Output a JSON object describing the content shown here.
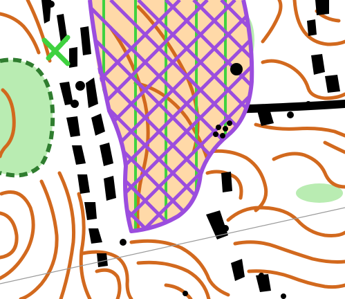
{
  "map": {
    "type": "orienteering-map",
    "colors": {
      "paper": "#ffffff",
      "contour": "#d2691e",
      "rough_open_land": "#ffd9a8",
      "vegetation_green": "#b9ecb2",
      "vegetation_boundary": "#2f7d2f",
      "rock_and_cliff": "#000000",
      "out_of_bounds_hatch": "#9b4dde",
      "stripe_green": "#3fd23f",
      "grid_line": "#9a9a9a"
    },
    "symbols": [
      "contour-lines",
      "cliffs-and-boulders",
      "out-of-bounds-area",
      "open-rough-land",
      "vegetation-area",
      "vegetation-boundary",
      "green-x-marker",
      "paved-track",
      "boulder-cluster",
      "grid-line"
    ]
  }
}
